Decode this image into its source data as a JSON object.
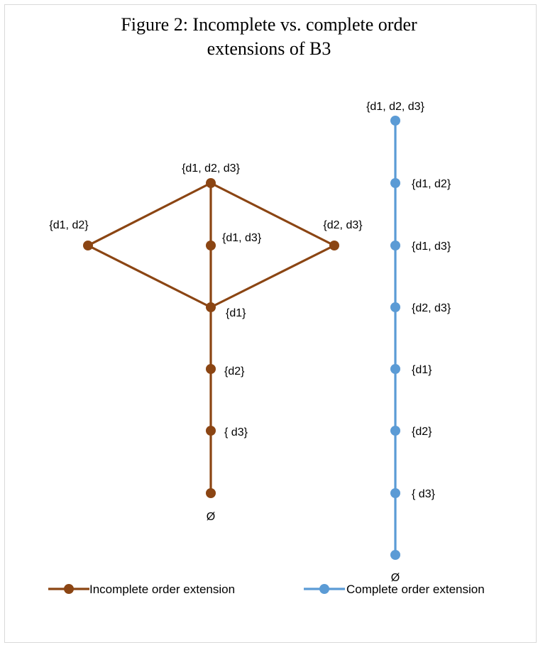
{
  "chart_data": {
    "type": "diagram",
    "title_line1": "Figure 2: Incomplete vs. complete order",
    "title_line2": "extensions of B3",
    "series": [
      {
        "name": "Incomplete order extension",
        "color": "#8B4513",
        "nodes": [
          {
            "id": "top",
            "label": "{d1, d2, d3}"
          },
          {
            "id": "d1d2",
            "label": "{d1, d2}"
          },
          {
            "id": "d1d3",
            "label": "{d1, d3}"
          },
          {
            "id": "d2d3",
            "label": "{d2, d3}"
          },
          {
            "id": "d1",
            "label": "{d1}"
          },
          {
            "id": "d2",
            "label": "{d2}"
          },
          {
            "id": "d3",
            "label": "{ d3}"
          },
          {
            "id": "empty",
            "label": "Ø"
          }
        ],
        "edges": [
          [
            "top",
            "d1d2"
          ],
          [
            "top",
            "d2d3"
          ],
          [
            "top",
            "d1d3"
          ],
          [
            "d1d2",
            "d1"
          ],
          [
            "d2d3",
            "d1"
          ],
          [
            "d1d3",
            "d1"
          ],
          [
            "d1",
            "d2"
          ],
          [
            "d2",
            "d3"
          ],
          [
            "d3",
            "empty"
          ]
        ]
      },
      {
        "name": "Complete order extension",
        "color": "#5B9BD5",
        "nodes": [
          {
            "id": "c0",
            "label": "{d1, d2, d3}"
          },
          {
            "id": "c1",
            "label": "{d1, d2}"
          },
          {
            "id": "c2",
            "label": "{d1, d3}"
          },
          {
            "id": "c3",
            "label": "{d2, d3}"
          },
          {
            "id": "c4",
            "label": "{d1}"
          },
          {
            "id": "c5",
            "label": "{d2}"
          },
          {
            "id": "c6",
            "label": "{ d3}"
          },
          {
            "id": "c7",
            "label": "Ø"
          }
        ],
        "edges": [
          [
            "c0",
            "c1"
          ],
          [
            "c1",
            "c2"
          ],
          [
            "c2",
            "c3"
          ],
          [
            "c3",
            "c4"
          ],
          [
            "c4",
            "c5"
          ],
          [
            "c5",
            "c6"
          ],
          [
            "c6",
            "c7"
          ]
        ]
      }
    ],
    "legend": {
      "placement": "bottom",
      "items": [
        "Incomplete order extension",
        "Complete order extension"
      ]
    }
  }
}
